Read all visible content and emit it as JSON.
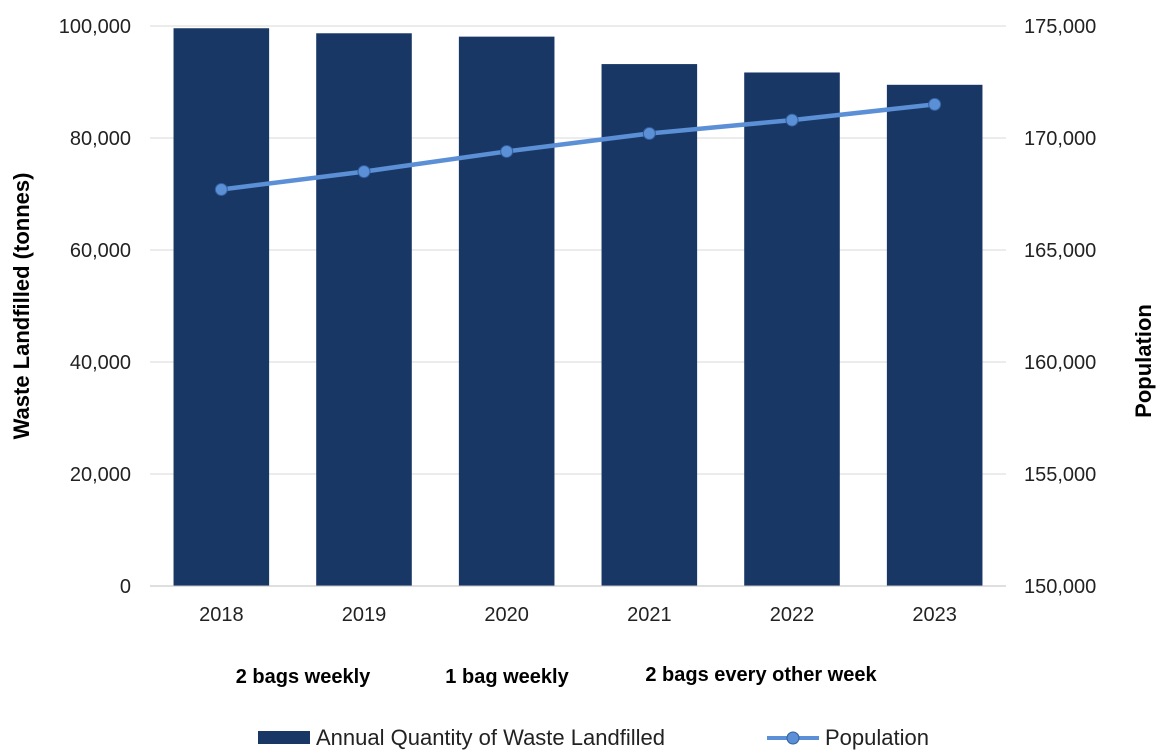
{
  "chart_data": {
    "type": "bar",
    "categories": [
      "2018",
      "2019",
      "2020",
      "2021",
      "2022",
      "2023"
    ],
    "series": [
      {
        "name": "Annual Quantity of Waste Landfilled",
        "type": "bar",
        "axis": "left",
        "color": "#193764",
        "values": [
          99600,
          98700,
          98100,
          93200,
          91700,
          89500
        ]
      },
      {
        "name": "Population",
        "type": "line",
        "axis": "right",
        "color": "#5b8fd6",
        "values": [
          167700,
          168500,
          169400,
          170200,
          170800,
          171500
        ]
      }
    ],
    "ylabel": "Waste Landfilled (tonnes)",
    "ylim": [
      0,
      100000
    ],
    "y_ticks": [
      "0",
      "20,000",
      "40,000",
      "60,000",
      "80,000",
      "100,000"
    ],
    "y2label": "Population",
    "y2lim": [
      150000,
      175000
    ],
    "y2_ticks": [
      "150,000",
      "155,000",
      "160,000",
      "165,000",
      "170,000",
      "175,000"
    ],
    "grid": true,
    "legend_position": "bottom",
    "annotations": [
      "2 bags weekly",
      "1 bag weekly",
      "2 bags every other week"
    ]
  }
}
